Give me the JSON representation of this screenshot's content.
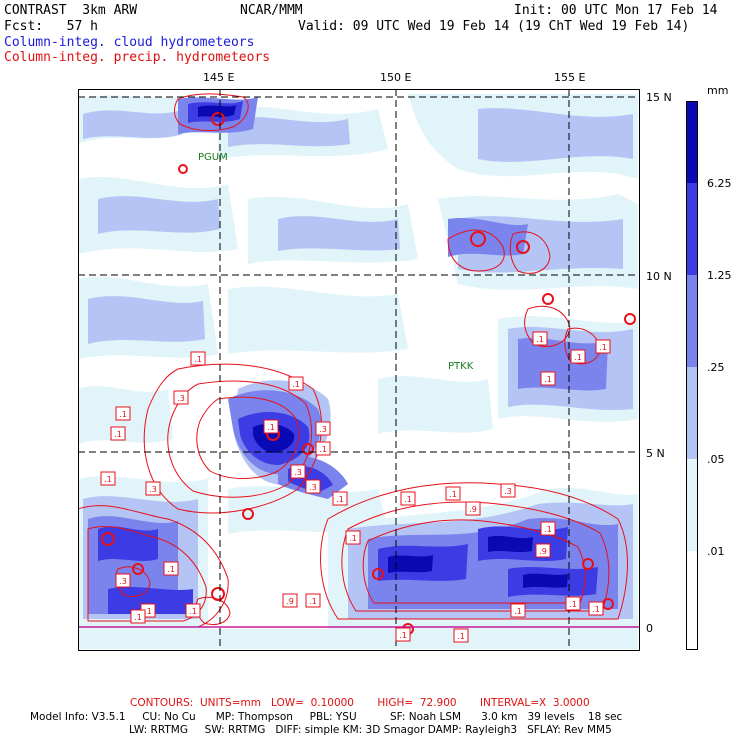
{
  "header": {
    "model_line": "CONTRAST  3km ARW",
    "org": "NCAR/MMM",
    "init": "Init: 00 UTC Mon 17 Feb 14",
    "fcst": "Fcst:   57 h",
    "valid": "Valid: 09 UTC Wed 19 Feb 14 (19 ChT Wed 19 Feb 14)",
    "legend_cloud": "Column-integ. cloud hydrometeors",
    "legend_precip": "Column-integ. precip. hydrometeors"
  },
  "colors": {
    "cloud_legend": "#1a1adc",
    "precip_legend": "#e01010",
    "contour": "#e8101a",
    "shade_1": "#e0f4fa",
    "shade_2": "#b4c4f4",
    "shade_3": "#7a84ec",
    "shade_4": "#3c3ce4",
    "shade_5": "#0a0ab4"
  },
  "map": {
    "lon_labels": [
      "145 E",
      "150 E",
      "155 E"
    ],
    "lat_labels": [
      "15 N",
      "10 N",
      "5 N",
      "0"
    ],
    "stations": [
      "PGUM",
      "PTKK"
    ],
    "contour_labels": [
      ".1",
      ".1",
      ".3",
      ".1",
      ".1",
      ".3",
      ".1",
      ".3",
      ".3",
      ".1",
      ".1",
      ".3",
      ".9",
      ".1",
      ".1",
      ".9",
      ".3",
      ".1",
      ".1",
      ".1",
      ".1",
      ".1",
      ".1",
      ".1",
      ".9",
      ".1",
      ".1",
      ".1",
      ".1",
      ".1",
      ".3",
      ".1",
      ".1",
      ".1",
      ".1",
      ".1"
    ]
  },
  "colorbar": {
    "unit": "mm",
    "tick_labels": [
      "6.25",
      "1.25",
      ".25",
      ".05",
      ".01"
    ]
  },
  "footer": {
    "contours": "CONTOURS:  UNITS=mm   LOW=  0.10000       HIGH=  72.900       INTERVAL=X  3.0000",
    "line1": "Model Info: V3.5.1     CU: No Cu      MP: Thompson     PBL: YSU          SF: Noah LSM      3.0 km   39 levels    18 sec",
    "line2": "LW: RRTMG     SW: RRTMG   DIFF: simple KM: 3D Smagor DAMP: Rayleigh3   SFLAY: Rev MM5"
  }
}
